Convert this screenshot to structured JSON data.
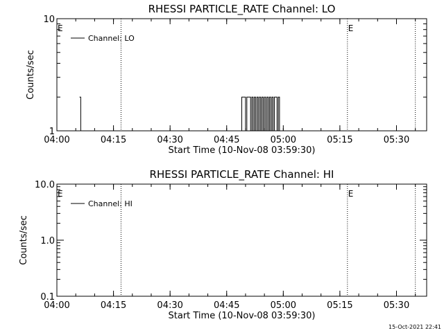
{
  "chart_data": [
    {
      "type": "line",
      "title": "RHESSI PARTICLE_RATE Channel: LO",
      "xlabel": "Start Time (10-Nov-08 03:59:30)",
      "ylabel": "Counts/sec",
      "yscale": "log",
      "ylim": [
        1,
        10
      ],
      "ytick_values": [
        1,
        10
      ],
      "ytick_labels": [
        "1",
        "10"
      ],
      "xlim": [
        "04:00",
        "05:38"
      ],
      "xtick_values": [
        "04:00",
        "04:15",
        "04:30",
        "04:45",
        "05:00",
        "05:15",
        "05:30"
      ],
      "xtick_labels": [
        "04:00",
        "04:15",
        "04:30",
        "04:45",
        "05:00",
        "05:15",
        "05:30"
      ],
      "legend": {
        "entries": [
          "Channel: LO"
        ],
        "placement": "top-left"
      },
      "vlines": [
        "04:17",
        "05:17",
        "05:35"
      ],
      "event_markers": [
        {
          "x": "04:00",
          "label": "E"
        },
        {
          "x": "05:17",
          "label": "E"
        }
      ],
      "series": [
        {
          "name": "Channel: LO",
          "points": [
            [
              "04:06:00",
              2
            ],
            [
              "04:06:20",
              1
            ],
            [
              "04:48:40",
              1
            ],
            [
              "04:49:00",
              2
            ],
            [
              "04:49:40",
              2
            ],
            [
              "04:50:00",
              1
            ],
            [
              "04:50:20",
              2
            ],
            [
              "04:51:00",
              2
            ],
            [
              "04:51:20",
              1
            ],
            [
              "04:51:40",
              2
            ],
            [
              "04:52:00",
              1
            ],
            [
              "04:52:20",
              2
            ],
            [
              "04:52:40",
              1
            ],
            [
              "04:53:00",
              2
            ],
            [
              "04:53:20",
              1
            ],
            [
              "04:53:40",
              2
            ],
            [
              "04:54:00",
              1
            ],
            [
              "04:54:20",
              2
            ],
            [
              "04:54:40",
              1
            ],
            [
              "04:55:00",
              2
            ],
            [
              "04:55:20",
              1
            ],
            [
              "04:55:40",
              2
            ],
            [
              "04:56:00",
              1
            ],
            [
              "04:56:20",
              2
            ],
            [
              "04:56:40",
              1
            ],
            [
              "04:57:00",
              2
            ],
            [
              "04:57:20",
              1
            ],
            [
              "04:57:40",
              2
            ],
            [
              "04:58:00",
              2
            ],
            [
              "04:58:20",
              1
            ],
            [
              "04:58:40",
              2
            ],
            [
              "04:59:00",
              1
            ]
          ]
        }
      ]
    },
    {
      "type": "line",
      "title": "RHESSI PARTICLE_RATE Channel: HI",
      "xlabel": "Start Time (10-Nov-08 03:59:30)",
      "ylabel": "Counts/sec",
      "yscale": "log",
      "ylim": [
        0.1,
        10
      ],
      "ytick_values": [
        0.1,
        1,
        10
      ],
      "ytick_labels": [
        "0.1",
        "1.0",
        "10.0"
      ],
      "xlim": [
        "04:00",
        "05:38"
      ],
      "xtick_values": [
        "04:00",
        "04:15",
        "04:30",
        "04:45",
        "05:00",
        "05:15",
        "05:30"
      ],
      "xtick_labels": [
        "04:00",
        "04:15",
        "04:30",
        "04:45",
        "05:00",
        "05:15",
        "05:30"
      ],
      "legend": {
        "entries": [
          "Channel: HI"
        ],
        "placement": "top-left"
      },
      "vlines": [
        "04:17",
        "05:17",
        "05:35"
      ],
      "event_markers": [
        {
          "x": "04:00",
          "label": "E"
        },
        {
          "x": "05:17",
          "label": "E"
        }
      ],
      "series": [
        {
          "name": "Channel: HI",
          "points": []
        }
      ]
    }
  ],
  "footer": {
    "timestamp": "15-Oct-2021 22:41"
  }
}
